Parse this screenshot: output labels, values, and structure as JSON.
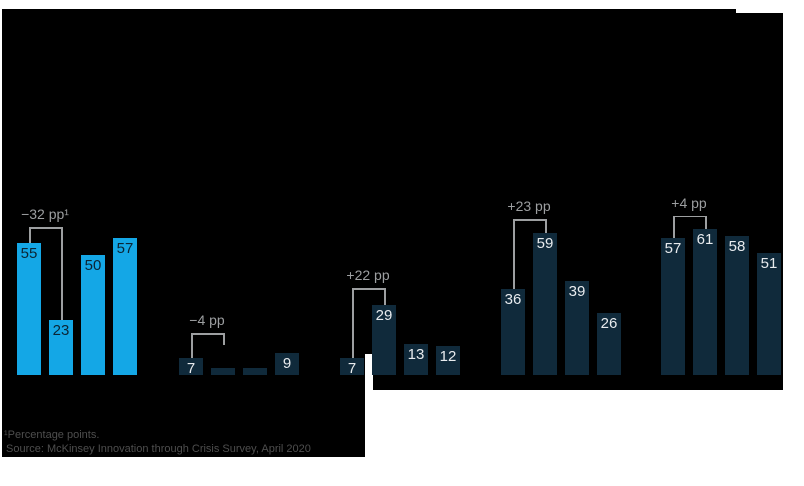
{
  "colors": {
    "canvas_black": "#000000",
    "page_white": "#ffffff",
    "bar_blue": "#14a7e6",
    "bar_navy": "#102a3b",
    "label_on_blue": "#0b2535",
    "label_on_navy": "#e8ebee",
    "annotation_text": "#9d9fa1",
    "bracket_line": "#9d9fa1",
    "footnote_text": "#4e4e4e"
  },
  "chart_data": {
    "type": "bar",
    "unit": "percent",
    "legend_position": "none",
    "grid": false,
    "axis_labels_visible": false,
    "groups": [
      {
        "name": "group-1",
        "color_key": "blue",
        "bars": [
          {
            "value": 55,
            "label": "55"
          },
          {
            "value": 23,
            "label": "23"
          },
          {
            "value": 50,
            "label": "50"
          },
          {
            "value": 57,
            "label": "57"
          }
        ],
        "annotation": {
          "label": "−32 pp¹",
          "delta_pp": -32,
          "from_bar": 0,
          "to_bar": 1
        }
      },
      {
        "name": "group-2",
        "color_key": "navy",
        "bars": [
          {
            "value": 7,
            "label": "7"
          },
          {
            "value": 3,
            "label": ""
          },
          {
            "value": 3,
            "label": ""
          },
          {
            "value": 9,
            "label": "9"
          }
        ],
        "annotation": {
          "label": "−4 pp",
          "delta_pp": -4,
          "from_bar": 0,
          "to_bar": 1
        }
      },
      {
        "name": "group-3",
        "color_key": "navy",
        "bars": [
          {
            "value": 7,
            "label": "7"
          },
          {
            "value": 29,
            "label": "29"
          },
          {
            "value": 13,
            "label": "13"
          },
          {
            "value": 12,
            "label": "12"
          }
        ],
        "annotation": {
          "label": "+22 pp",
          "delta_pp": 22,
          "from_bar": 0,
          "to_bar": 1
        }
      },
      {
        "name": "group-4",
        "color_key": "navy",
        "bars": [
          {
            "value": 36,
            "label": "36"
          },
          {
            "value": 59,
            "label": "59"
          },
          {
            "value": 39,
            "label": "39"
          },
          {
            "value": 26,
            "label": "26"
          }
        ],
        "annotation": {
          "label": "+23 pp",
          "delta_pp": 23,
          "from_bar": 0,
          "to_bar": 1
        }
      },
      {
        "name": "group-5",
        "color_key": "navy",
        "bars": [
          {
            "value": 57,
            "label": "57"
          },
          {
            "value": 61,
            "label": "61"
          },
          {
            "value": 58,
            "label": "58"
          },
          {
            "value": 51,
            "label": "51"
          }
        ],
        "annotation": {
          "label": "+4 pp",
          "delta_pp": 4,
          "from_bar": 0,
          "to_bar": 1
        }
      }
    ],
    "footnote": "¹Percentage points.",
    "source": "Source: McKinsey Innovation through Crisis Survey, April 2020"
  }
}
